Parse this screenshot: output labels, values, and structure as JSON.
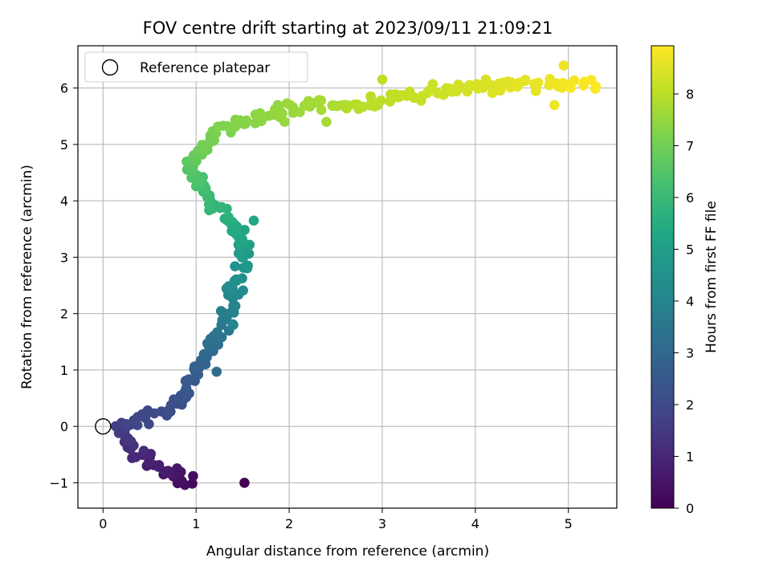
{
  "chart_data": {
    "type": "scatter",
    "title": "FOV centre drift starting at 2023/09/11 21:09:21",
    "xlabel": "Angular distance from reference (arcmin)",
    "ylabel": "Rotation from reference (arcmin)",
    "colorbar_label": "Hours from first FF file",
    "colormap": "viridis",
    "xlim": [
      -0.27,
      5.52
    ],
    "ylim": [
      -1.45,
      6.75
    ],
    "clim": [
      0,
      8.93
    ],
    "x_ticks": [
      0,
      1,
      2,
      3,
      4,
      5
    ],
    "y_ticks": [
      -1,
      0,
      1,
      2,
      3,
      4,
      5,
      6
    ],
    "colorbar_ticks": [
      0,
      1,
      2,
      3,
      4,
      5,
      6,
      7,
      8
    ],
    "grid": true,
    "legend": {
      "placement": "top-left",
      "entries": [
        "Reference platepar"
      ]
    },
    "reference_point": {
      "x": 0,
      "y": 0
    },
    "control_points": [
      [
        1.52,
        -1.0,
        0.0
      ],
      [
        0.93,
        -1.06,
        0.2
      ],
      [
        0.8,
        -0.85,
        0.45
      ],
      [
        0.55,
        -0.7,
        0.75
      ],
      [
        0.38,
        -0.45,
        1.0
      ],
      [
        0.25,
        -0.2,
        1.3
      ],
      [
        0.18,
        -0.05,
        1.6
      ],
      [
        0.35,
        0.15,
        1.85
      ],
      [
        0.7,
        0.28,
        2.05
      ],
      [
        0.87,
        0.55,
        2.3
      ],
      [
        0.92,
        0.92,
        2.6
      ],
      [
        1.1,
        1.25,
        3.0
      ],
      [
        1.28,
        1.75,
        3.5
      ],
      [
        1.38,
        2.2,
        4.0
      ],
      [
        1.45,
        2.6,
        4.4
      ],
      [
        1.55,
        3.0,
        4.8
      ],
      [
        1.5,
        3.3,
        5.2
      ],
      [
        1.25,
        3.85,
        5.7
      ],
      [
        1.1,
        4.1,
        6.1
      ],
      [
        0.95,
        4.5,
        6.5
      ],
      [
        1.05,
        5.0,
        7.0
      ],
      [
        1.5,
        5.4,
        7.3
      ],
      [
        2.1,
        5.7,
        7.6
      ],
      [
        2.7,
        5.7,
        7.9
      ],
      [
        3.2,
        5.85,
        8.1
      ],
      [
        3.8,
        5.95,
        8.3
      ],
      [
        4.3,
        6.05,
        8.5
      ],
      [
        4.85,
        6.1,
        8.7
      ],
      [
        5.28,
        6.07,
        8.93
      ]
    ],
    "outlier_points": [
      [
        4.95,
        6.4,
        8.75
      ],
      [
        4.85,
        5.7,
        8.7
      ],
      [
        3.0,
        6.15,
        8.05
      ],
      [
        2.4,
        5.4,
        7.75
      ],
      [
        1.95,
        5.4,
        7.55
      ],
      [
        1.62,
        3.65,
        5.3
      ],
      [
        1.4,
        1.8,
        4.0
      ],
      [
        1.22,
        0.97,
        3.2
      ],
      [
        0.65,
        -0.85,
        0.5
      ],
      [
        0.47,
        -0.7,
        0.7
      ]
    ]
  }
}
